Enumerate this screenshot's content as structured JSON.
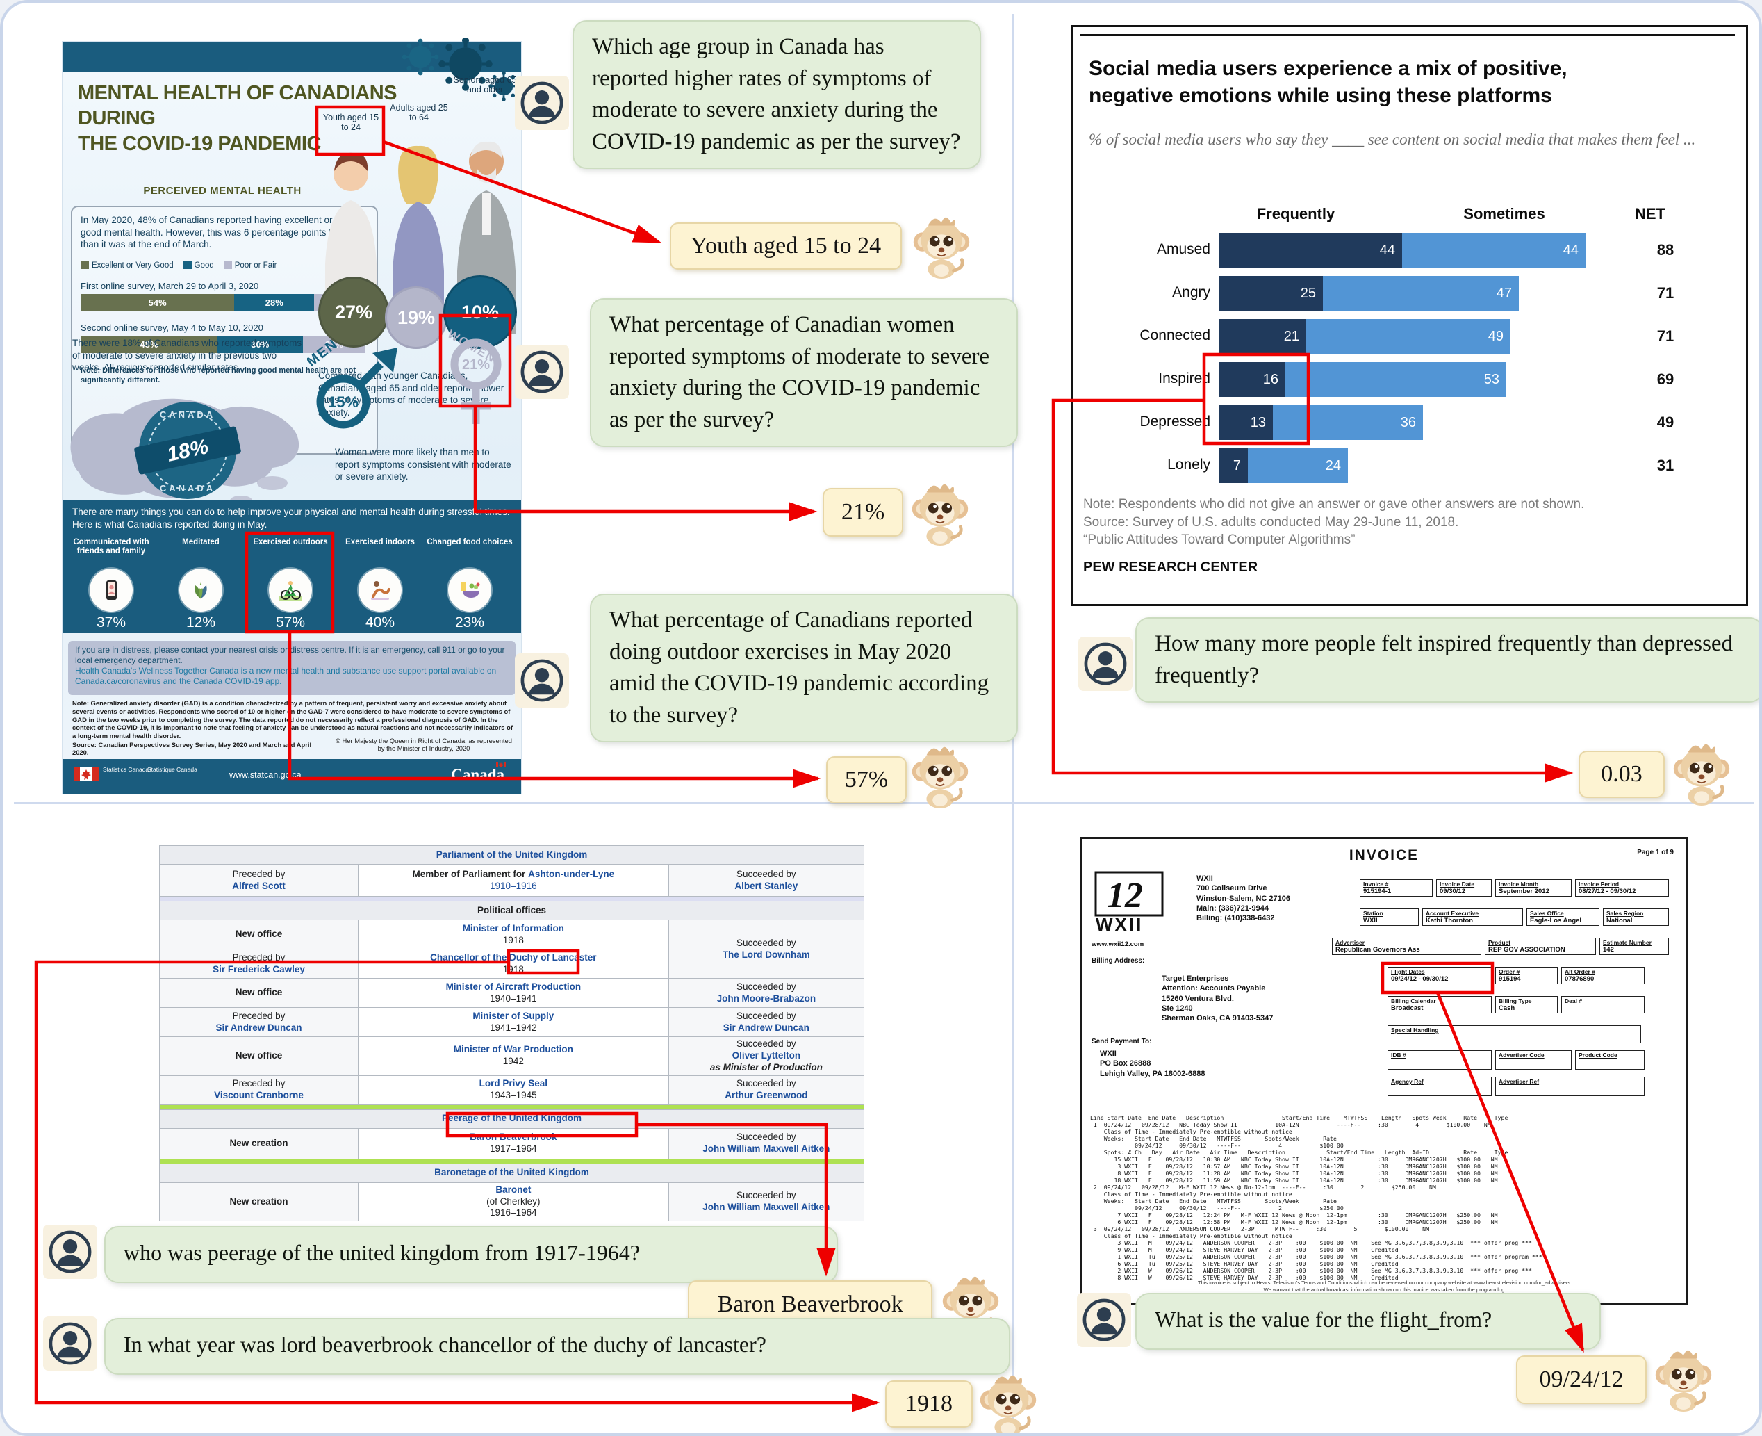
{
  "colors": {
    "teal": "#1a5c7e",
    "olive": "#4f5622",
    "olive-swatch": "#68714f",
    "lavender": "#b7b9ce",
    "navy-text": "#16415c",
    "pew-dark": "#203a5c",
    "pew-light": "#5295d5",
    "red": "#ee0000",
    "bubble-green": "#e3efda",
    "answer-cream": "#fdf3d2",
    "wiki-link": "#1d4f9c",
    "wiki-header-bg": "#eaecf0",
    "green-bar": "#aee152",
    "avatar-navy": "#2d3e50"
  },
  "infographic": {
    "title_line1": "MENTAL HEALTH OF CANADIANS DURING",
    "title_line2": "THE COVID-19 PANDEMIC",
    "section1_title": "PERCEIVED MENTAL HEALTH",
    "intro": "In May 2020, 48% of Canadians reported having excellent or very good mental health. However, this was 6 percentage points lower than it was at the end of March.",
    "legend": [
      "Excellent or Very Good",
      "Good",
      "Poor or Fair"
    ],
    "survey1_label": "First online survey, March 29 to April 3, 2020",
    "survey2_label": "Second online survey, May 4 to May 10, 2020",
    "survey1": [
      "54%",
      "28%",
      "18%"
    ],
    "survey2": [
      "48%",
      "30%",
      "22%"
    ],
    "survey_note": "Note: Differences for those who reported having good mental health are not significantly different.",
    "age_groups": [
      {
        "label": "Youth aged 15 to 24",
        "value": "27%"
      },
      {
        "label": "Adults aged 25 to 64",
        "value": "19%"
      },
      {
        "label": "Seniors aged 65 and older",
        "value": "10%"
      }
    ],
    "compared": "Compared with younger Canadians, Canadians aged 65 and older reported lower rates of symptoms of moderate to severe anxiety.",
    "anxiety18": "There were 18% of Canadians who reported symptoms of moderate to severe anxiety in the previous two weeks. All regions reported similar rates.",
    "stamp_value": "18%",
    "stamp_country": "CANADA",
    "men_label": "MEN",
    "men_value": "15%",
    "women_label": "WOMEN",
    "women_value": "21%",
    "women_note": "Women were more likely than men to report symptoms consistent with moderate or severe anxiety.",
    "panel_heading": "There are many things you can do to help improve your physical and mental health during stressful times. Here is what Canadians reported doing in May.",
    "activities": [
      {
        "label": "Communicated with friends and family",
        "value": "37%"
      },
      {
        "label": "Meditated",
        "value": "12%"
      },
      {
        "label": "Exercised outdoors",
        "value": "57%"
      },
      {
        "label": "Exercised indoors",
        "value": "40%"
      },
      {
        "label": "Changed food choices",
        "value": "23%"
      }
    ],
    "crisis_line1": "If you are in distress, please contact your nearest crisis or distress centre. If it is an emergency, call 911 or go to your local emergency department.",
    "crisis_line2": "Health Canada's Wellness Together Canada is a new mental health and substance use support portal available on Canada.ca/coronavirus and the Canada COVID-19 app.",
    "gad_note": "Note: Generalized anxiety disorder (GAD) is a condition characterized by a pattern of frequent, persistent worry and excessive anxiety about several events or activities. Respondents who scored of 10 or higher on the GAD-7 were considered to have moderate to severe symptoms of GAD in the two weeks prior to completing the survey. The data reported do not necessarily reflect a professional diagnosis of GAD. In the context of the COVID-19, it is important to note that feeling of anxiety can be understood as natural reactions and not necessarily indicators of a long-term mental health disorder.",
    "source": "Source: Canadian Perspectives Survey Series, May 2020 and March and April 2020.",
    "copyright": "© Her Majesty the Queen in Right of Canada, as represented by the Minister of Industry, 2020",
    "footer_org1": "Statistics Canada",
    "footer_org2": "Statistique Canada",
    "footer_url": "www.statcan.gc.ca",
    "footer_wordmark": "Canada"
  },
  "chart_data": [
    {
      "type": "bar",
      "orientation": "horizontal",
      "stacked": true,
      "title": "Social media users experience a mix of positive, negative emotions while using these platforms",
      "subtitle": "% of social media users who say they ____ see content on social media that makes them feel ...",
      "categories": [
        "Amused",
        "Angry",
        "Connected",
        "Inspired",
        "Depressed",
        "Lonely"
      ],
      "series": [
        {
          "name": "Frequently",
          "values": [
            44,
            25,
            21,
            16,
            13,
            7
          ],
          "color": "#203a5c"
        },
        {
          "name": "Sometimes",
          "values": [
            44,
            47,
            49,
            53,
            36,
            24
          ],
          "color": "#5295d5"
        }
      ],
      "net_label": "NET",
      "net": [
        88,
        71,
        71,
        69,
        49,
        31
      ],
      "xlim": [
        0,
        100
      ],
      "grid": false,
      "legend_position": "top",
      "note": "Note: Respondents who did not give an answer or gave other answers are not shown.",
      "source": "Source: Survey of U.S. adults conducted May 29-June 11, 2018.",
      "quote": "“Public Attitudes Toward Computer Algorithms”",
      "org": "PEW RESEARCH CENTER"
    },
    {
      "type": "bar",
      "orientation": "horizontal",
      "stacked": true,
      "title": "Perceived mental health",
      "categories": [
        "First online survey, March 29 to April 3, 2020",
        "Second online survey, May 4 to May 10, 2020"
      ],
      "series": [
        {
          "name": "Excellent or Very Good",
          "values": [
            54,
            48
          ],
          "color": "#68714f"
        },
        {
          "name": "Good",
          "values": [
            28,
            30
          ],
          "color": "#176383"
        },
        {
          "name": "Poor or Fair",
          "values": [
            18,
            22
          ],
          "color": "#b7b9ce"
        }
      ]
    }
  ],
  "qa": {
    "tl": [
      {
        "question": "Which age group in Canada has reported higher rates of symptoms of moderate to severe anxiety during the COVID-19 pandemic as per the survey?",
        "answer": "Youth aged 15 to 24"
      },
      {
        "question": "What percentage of Canadian women reported symptoms of moderate to severe anxiety during the COVID-19 pandemic as per the survey?",
        "answer": "21%"
      },
      {
        "question": "What percentage of Canadians reported doing outdoor exercises in May 2020 amid the COVID-19 pandemic according to the survey?",
        "answer": "57%"
      }
    ],
    "tr": [
      {
        "question": "How many more people felt inspired frequently than depressed frequently?",
        "answer": "0.03"
      }
    ],
    "bl": [
      {
        "question": "who was peerage of the united kingdom from 1917-1964?",
        "answer": "Baron Beaverbrook"
      },
      {
        "question": "In what year was lord beaverbrook chancellor of the duchy of lancaster?",
        "answer": "1918"
      }
    ],
    "br": [
      {
        "question": "What is the value for the flight_from?",
        "answer": "09/24/12"
      }
    ]
  },
  "wiki": {
    "header_parliament": "Parliament of the United Kingdom",
    "mp_row": {
      "pre_label": "Preceded by",
      "pre_name": "Alfred Scott",
      "mid_prefix": "Member of Parliament for",
      "mid_link": "Ashton-under-Lyne",
      "mid_years": "1910–1916",
      "suc_label": "Succeeded by",
      "suc_name": "Albert Stanley"
    },
    "header_political": "Political offices",
    "rows": [
      {
        "left_label": "New office",
        "left_name": "",
        "office": "Minister of Information",
        "years": "1918",
        "right_label": "Succeeded by",
        "right_name": "The Lord Downham",
        "right_note": ""
      },
      {
        "left_label": "Preceded by",
        "left_name": "Sir Frederick Cawley",
        "office": "Chancellor of the Duchy of Lancaster",
        "years": "1918",
        "right_label": "",
        "right_name": "",
        "right_note": ""
      },
      {
        "left_label": "New office",
        "left_name": "",
        "office": "Minister of Aircraft Production",
        "years": "1940–1941",
        "right_label": "Succeeded by",
        "right_name": "John Moore-Brabazon",
        "right_note": ""
      },
      {
        "left_label": "Preceded by",
        "left_name": "Sir Andrew Duncan",
        "office": "Minister of Supply",
        "years": "1941–1942",
        "right_label": "Succeeded by",
        "right_name": "Sir Andrew Duncan",
        "right_note": ""
      },
      {
        "left_label": "New office",
        "left_name": "",
        "office": "Minister of War Production",
        "years": "1942",
        "right_label": "Succeeded by",
        "right_name": "Oliver Lyttelton",
        "right_note": "as Minister of Production"
      },
      {
        "left_label": "Preceded by",
        "left_name": "Viscount Cranborne",
        "office": "Lord Privy Seal",
        "years": "1943–1945",
        "right_label": "Succeeded by",
        "right_name": "Arthur Greenwood",
        "right_note": ""
      }
    ],
    "header_peerage": "Peerage of the United Kingdom",
    "peerage_row": {
      "left_label": "New creation",
      "office": "Baron Beaverbrook",
      "years": "1917–1964",
      "right_label": "Succeeded by",
      "right_name": "John William Maxwell Aitken"
    },
    "header_baronetage": "Baronetage of the United Kingdom",
    "baronet_row": {
      "left_label": "New creation",
      "office": "Baronet",
      "office_sub": "(of Cherkley)",
      "years": "1916–1964",
      "right_label": "Succeeded by",
      "right_name": "John William Maxwell Aitken"
    }
  },
  "invoice": {
    "doc_title": "INVOICE",
    "page": "Page  1 of 9",
    "logo_number": "12",
    "logo_station": "WXII",
    "station_address": [
      "WXII",
      "700 Coliseum Drive",
      "Winston-Salem, NC  27106",
      "Main:   (336)721-9944",
      "Billing: (410)338-6432"
    ],
    "website": "www.wxii12.com",
    "billing_address_label": "Billing Address:",
    "billing_address": [
      "Target Enterprises",
      "Attention: Accounts Payable",
      "15260 Ventura Blvd.",
      "Ste 1240",
      "Sherman Oaks, CA  91403-5347"
    ],
    "send_payment_label": "Send Payment To:",
    "send_payment": [
      "WXII",
      "PO Box 26888",
      "Lehigh Valley, PA  18002-6888"
    ],
    "grid": {
      "invoice_no_label": "Invoice #",
      "invoice_no": "915194-1",
      "invoice_date_label": "Invoice Date",
      "invoice_date": "09/30/12",
      "invoice_month_label": "Invoice Month",
      "invoice_month": "September 2012",
      "invoice_period_label": "Invoice Period",
      "invoice_period": "08/27/12 - 09/30/12",
      "station_label": "Station",
      "station": "WXII",
      "account_exec_label": "Account Executive",
      "account_exec": "Kathi Thornton",
      "sales_office_label": "Sales Office",
      "sales_office": "Eagle-Los Angel",
      "sales_region_label": "Sales Region",
      "sales_region": "National",
      "advertiser_label": "Advertiser",
      "advertiser": "Republican Governors Ass",
      "product_label": "Product",
      "product": "REP GOV ASSOCIATION",
      "estimate_label": "Estimate Number",
      "estimate": "142",
      "flight_dates_label": "Flight Dates",
      "flight_dates": "09/24/12 - 09/30/12",
      "order_label": "Order #",
      "order": "915194",
      "alt_order_label": "Alt Order #",
      "alt_order": "07876890",
      "billing_calendar_label": "Billing Calendar",
      "billing_calendar": "Broadcast",
      "billing_type_label": "Billing Type",
      "billing_type": "Cash",
      "deal_label": "Deal #",
      "deal": "",
      "special_handling_label": "Special Handling",
      "idb_label": "IDB #",
      "idb": "",
      "advertiser_code_label": "Advertiser Code",
      "advertiser_code": "",
      "product_code_label": "Product Code",
      "product_code": "",
      "agency_ref_label": "Agency Ref",
      "agency_ref": "",
      "advertiser_ref_label": "Advertiser Ref",
      "advertiser_ref": ""
    },
    "lines": [
      "Line Start Date  End Date   Description                 Start/End Time    MTWTFSS    Length   Spots Week     Rate     Type",
      " 1  09/24/12   09/28/12   NBC Today Show II           10A-12N           ----F--     :30        4        $100.00    NM",
      "    Class of Time - Immediately Pre-emptible without notice",
      "    Weeks:   Start Date   End Date   MTWTFSS       Spots/Week       Rate",
      "             09/24/12     09/30/12   ----F--           4           $100.00",
      "    Spots: # Ch   Day   Air Date   Air Time   Description            Start/End Time   Length  Ad-ID          Rate     Type",
      "       15 WXII   F    09/28/12   10:30 AM   NBC Today Show II      10A-12N          :30     DMRGANC1207H   $100.00   NM",
      "        3 WXII   F    09/28/12   10:57 AM   NBC Today Show II      10A-12N          :30     DMRGANC1207H   $100.00   NM",
      "        8 WXII   F    09/28/12   11:28 AM   NBC Today Show II      10A-12N          :30     DMRGANC1207H   $100.00   NM",
      "       18 WXII   F    09/28/12   11:59 AM   NBC Today Show II      10A-12N          :30     DMRGANC1207H   $100.00   NM",
      " 2  09/24/12   09/28/12   M-F WXII 12 News @ No-12-1pm  ----F--     :30        2        $250.00    NM",
      "    Class of Time - Immediately Pre-emptible without notice",
      "    Weeks:   Start Date   End Date   MTWTFSS       Spots/Week       Rate",
      "             09/24/12     09/30/12   ----F--           2           $250.00",
      "        7 WXII   F    09/28/12   12:24 PM   M-F WXII 12 News @ Noon  12-1pm         :30     DMRGANC1207H   $250.00   NM",
      "        6 WXII   F    09/28/12   12:58 PM   M-F WXII 12 News @ Noon  12-1pm         :30     DMRGANC1207H   $250.00   NM",
      " 3  09/24/12   09/28/12   ANDERSON COOPER   2-3P      MTWTF--     :30        5        $100.00    NM",
      "    Class of Time - Immediately Pre-emptible without notice",
      "        3 WXII   M    09/24/12   ANDERSON COOPER    2-3P    :00    $100.00  NM    See MG 3.6,3.7,3.8,3.9,3.10  *** offer prog ***",
      "        9 WXII   M    09/24/12   STEVE HARVEY DAY   2-3P    :00    $100.00  NM    Credited",
      "        1 WXII   Tu   09/25/12   ANDERSON COOPER    2-3P    :00    $100.00  NM    See MG 3.6,3.7,3.8,3.9,3.10  *** offer program ***",
      "        6 WXII   Tu   09/25/12   STEVE HARVEY DAY   2-3P    :00    $100.00  NM    Credited",
      "        2 WXII   W    09/26/12   ANDERSON COOPER    2-3P    :00    $100.00  NM    See MG 3.6,3.7,3.8,3.9,3.10  *** offer prog ***",
      "        8 WXII   W    09/26/12   STEVE HARVEY DAY   2-3P    :00    $100.00  NM    Credited"
    ],
    "fineprint1": "This invoice is subject to Hearst Television's Terms and Conditions which can be reviewed on our company website at  www.hearsttelevision.com/for_advertisers",
    "fineprint2": "We warrant that the actual broadcast information shown on this invoice was taken from the program log"
  }
}
